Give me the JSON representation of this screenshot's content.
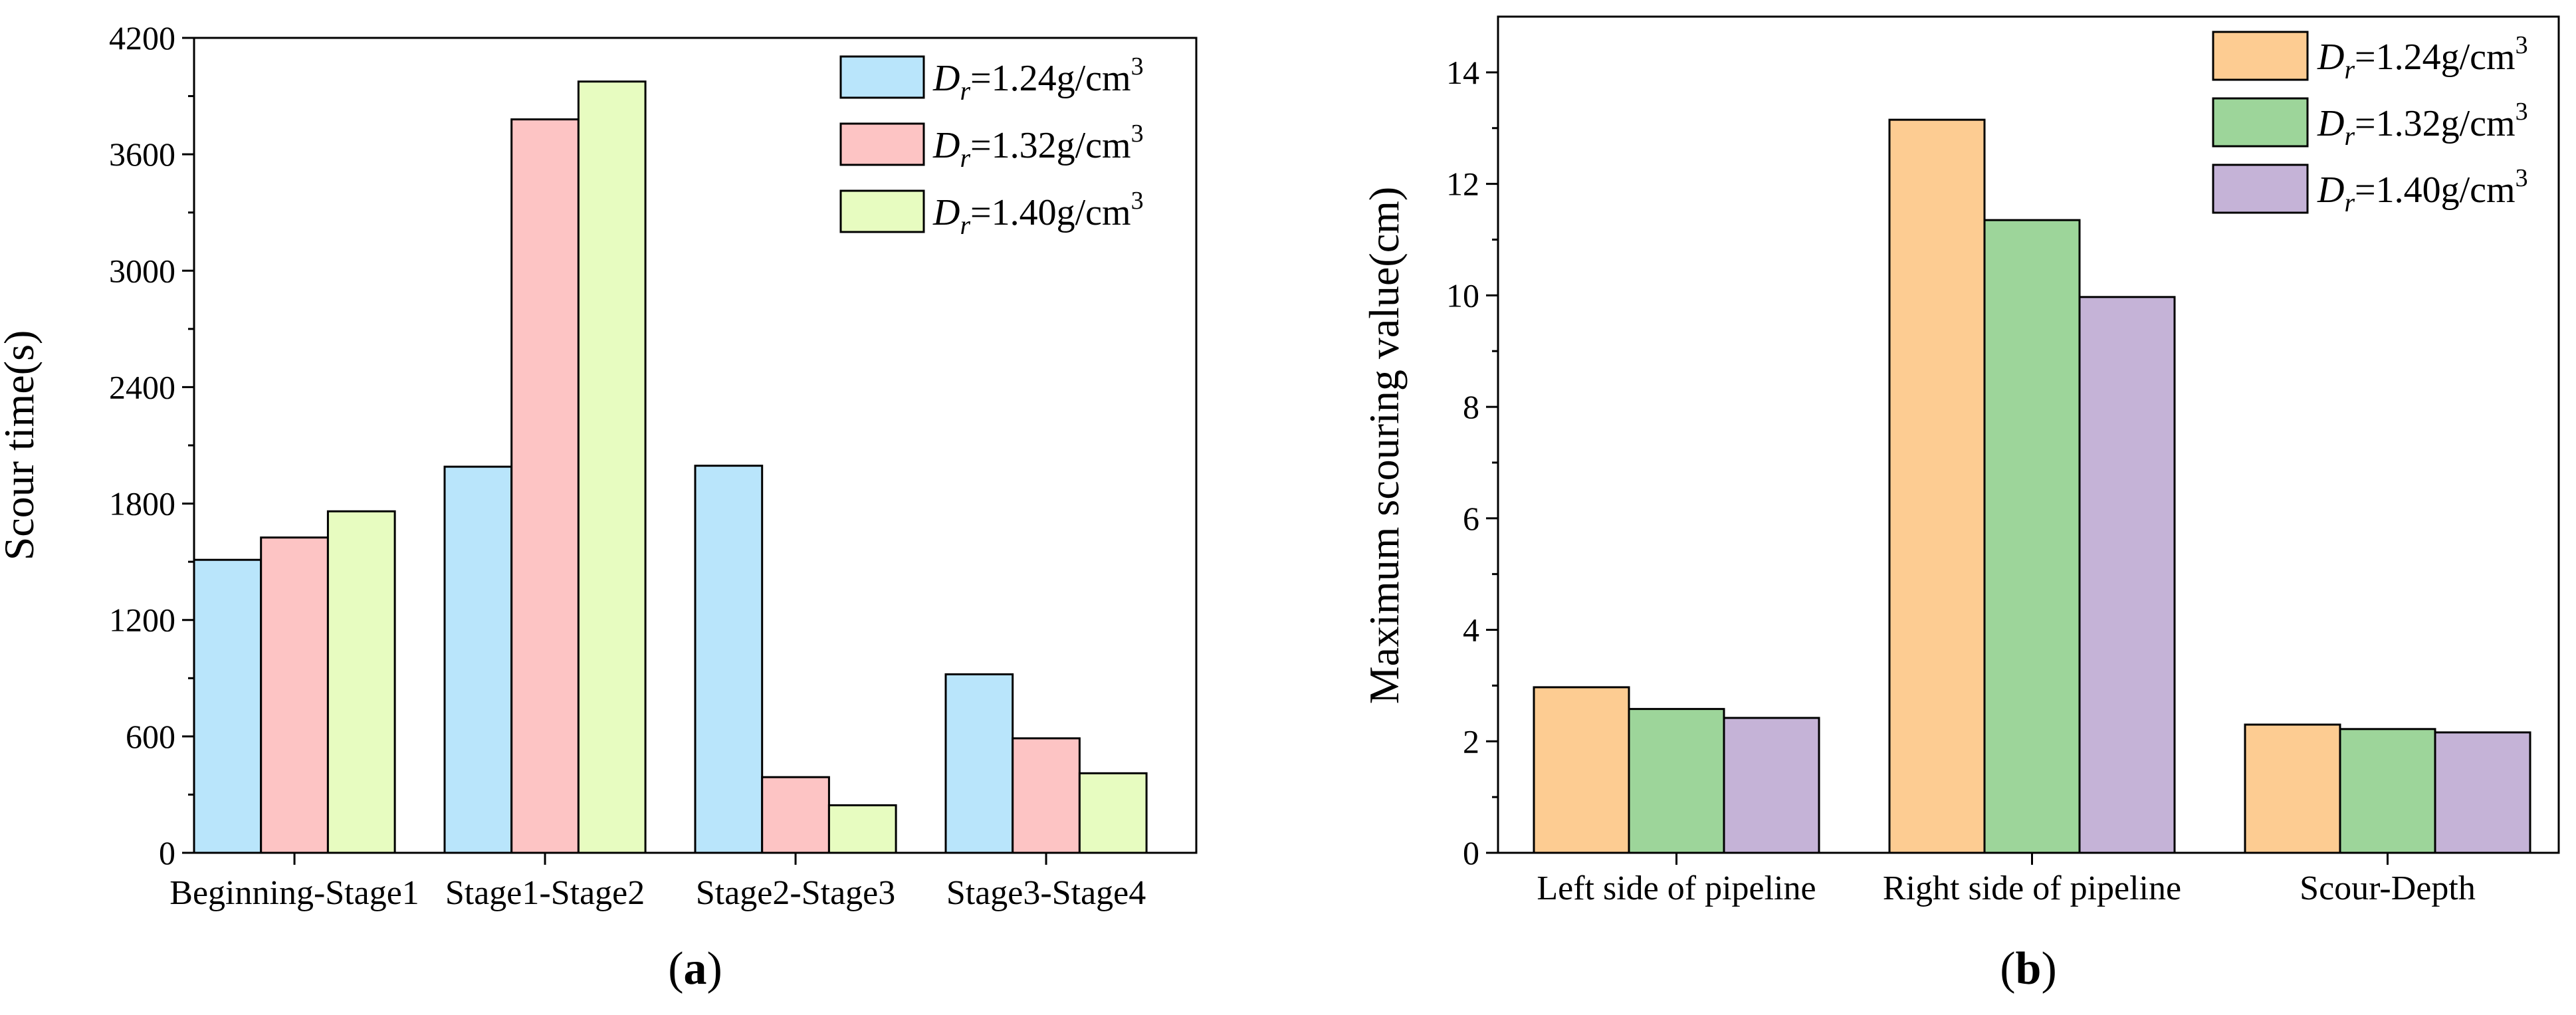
{
  "chart_data": [
    {
      "type": "bar",
      "panel_label": "a",
      "title": "",
      "xlabel": "",
      "ylabel": "Scour time(s)",
      "ylim": [
        0,
        4200
      ],
      "yticks": [
        "0",
        "600",
        "1200",
        "1800",
        "2400",
        "3000",
        "3600",
        "4200"
      ],
      "categories": [
        "Beginning-Stage1",
        "Stage1-Stage2",
        "Stage2-Stage3",
        "Stage3-Stage4"
      ],
      "legend_position": "top-right",
      "series": [
        {
          "name": "D_r=1.24g/cm^3",
          "label_var": "D",
          "label_sub": "r",
          "label_rest": "=1.24g/cm",
          "label_sup": "3",
          "color": "#b9e5fb",
          "values": [
            1510,
            1990,
            1995,
            920
          ]
        },
        {
          "name": "D_r=1.32g/cm^3",
          "label_var": "D",
          "label_sub": "r",
          "label_rest": "=1.32g/cm",
          "label_sup": "3",
          "color": "#fdc4c4",
          "values": [
            1625,
            3780,
            390,
            590
          ]
        },
        {
          "name": "D_r=1.40g/cm^3",
          "label_var": "D",
          "label_sub": "r",
          "label_rest": "=1.40g/cm",
          "label_sup": "3",
          "color": "#e7fcc0",
          "values": [
            1760,
            3975,
            245,
            410
          ]
        }
      ]
    },
    {
      "type": "bar",
      "panel_label": "b",
      "title": "",
      "xlabel": "",
      "ylabel": "Maximum scouring value(cm)",
      "ylim": [
        0,
        15
      ],
      "yticks": [
        "0",
        "2",
        "4",
        "6",
        "8",
        "10",
        "12",
        "14"
      ],
      "categories": [
        "Left side of pipeline",
        "Right side of pipeline",
        "Scour-Depth"
      ],
      "legend_position": "top-right",
      "series": [
        {
          "name": "D_r=1.24g/cm^3",
          "label_var": "D",
          "label_sub": "r",
          "label_rest": "=1.24g/cm",
          "label_sup": "3",
          "color": "#fdcc92",
          "values": [
            2.97,
            13.15,
            2.3
          ]
        },
        {
          "name": "D_r=1.32g/cm^3",
          "label_var": "D",
          "label_sub": "r",
          "label_rest": "=1.32g/cm",
          "label_sup": "3",
          "color": "#9dd59a",
          "values": [
            2.58,
            11.35,
            2.22
          ]
        },
        {
          "name": "D_r=1.40g/cm^3",
          "label_var": "D",
          "label_sub": "r",
          "label_rest": "=1.40g/cm",
          "label_sup": "3",
          "color": "#c5b3d7",
          "values": [
            2.42,
            9.97,
            2.16
          ]
        }
      ]
    }
  ]
}
